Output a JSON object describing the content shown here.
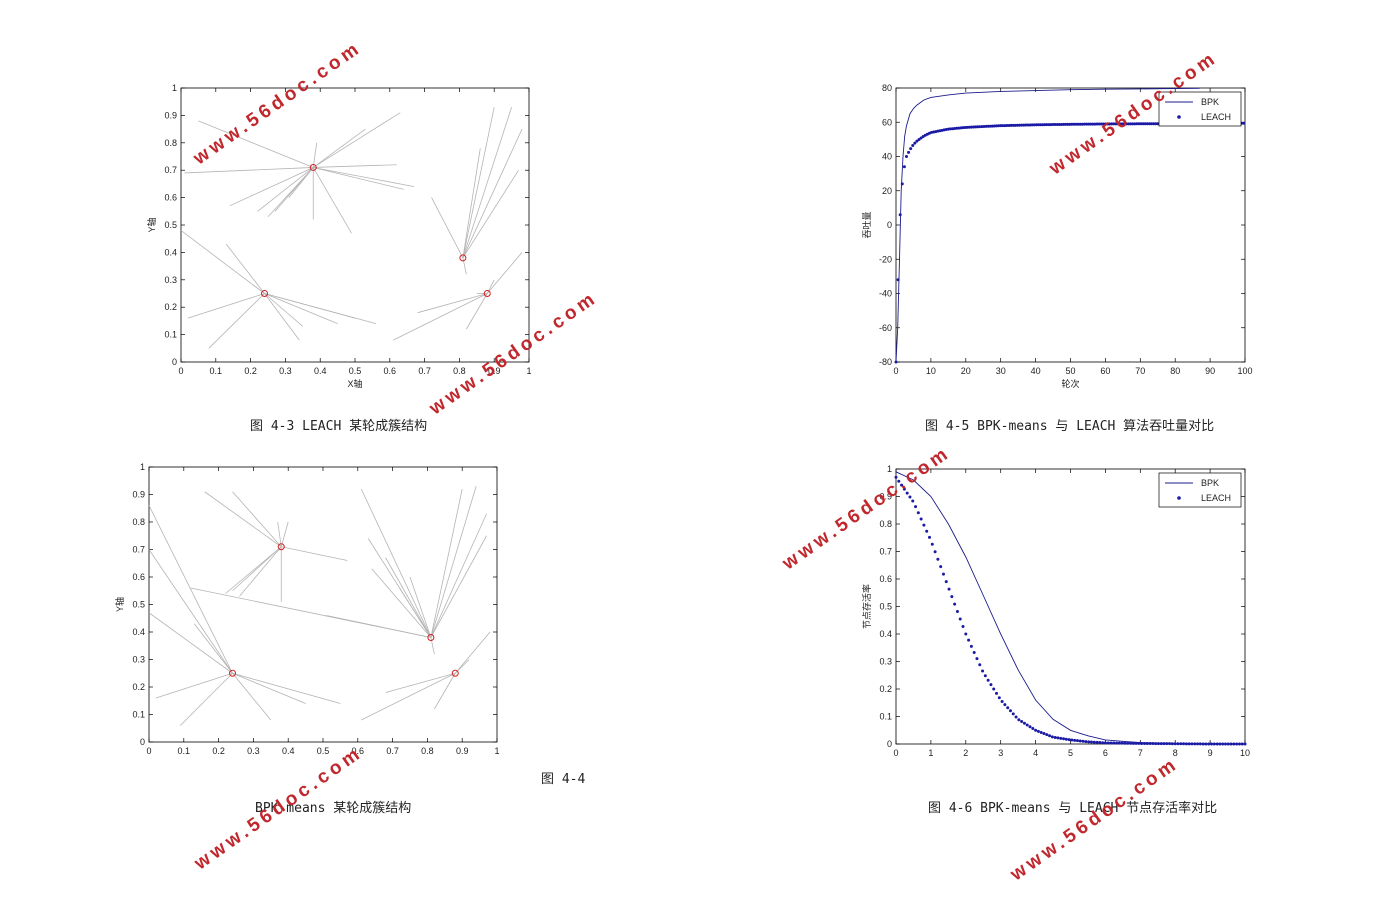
{
  "captions": {
    "fig43": "图 4-3 LEACH 某轮成簇结构",
    "fig44_label": "图 4-4",
    "fig44": "BPK-means 某轮成簇结构",
    "fig45": "图 4-5 BPK-means 与 LEACH 算法吞吐量对比",
    "fig46": "图 4-6 BPK-means 与 LEACH 节点存活率对比"
  },
  "watermark": "www.56doc.com",
  "colors": {
    "link": "#b4b4b4",
    "cluster_head": "#d42020",
    "bpk": "#1c1c8c",
    "leach": "#1a1aa6",
    "watermark": "#c0282d"
  },
  "chart_data": [
    {
      "id": "fig43",
      "type": "scatter",
      "xlabel": "X轴",
      "ylabel": "Y轴",
      "xlim": [
        0,
        1
      ],
      "ylim": [
        0,
        1
      ],
      "xticks": [
        "0",
        "0.1",
        "0.2",
        "0.3",
        "0.4",
        "0.5",
        "0.6",
        "0.7",
        "0.8",
        "0.9",
        "1"
      ],
      "yticks": [
        "0",
        "0.1",
        "0.2",
        "0.3",
        "0.4",
        "0.5",
        "0.6",
        "0.7",
        "0.8",
        "0.9",
        "1"
      ],
      "grid": false,
      "cluster_heads": [
        [
          0.38,
          0.71
        ],
        [
          0.81,
          0.38
        ],
        [
          0.24,
          0.25
        ],
        [
          0.88,
          0.25
        ]
      ],
      "clusters": [
        {
          "head": 0,
          "nodes": [
            [
              0.05,
              0.88
            ],
            [
              0.01,
              0.69
            ],
            [
              0.14,
              0.57
            ],
            [
              0.22,
              0.55
            ],
            [
              0.25,
              0.53
            ],
            [
              0.27,
              0.55
            ],
            [
              0.31,
              0.6
            ],
            [
              0.38,
              0.52
            ],
            [
              0.39,
              0.8
            ],
            [
              0.49,
              0.47
            ],
            [
              0.62,
              0.72
            ],
            [
              0.64,
              0.63
            ],
            [
              0.67,
              0.64
            ],
            [
              0.63,
              0.91
            ],
            [
              0.53,
              0.85
            ]
          ]
        },
        {
          "head": 1,
          "nodes": [
            [
              0.72,
              0.6
            ],
            [
              0.82,
              0.32
            ],
            [
              0.86,
              0.78
            ],
            [
              0.9,
              0.93
            ],
            [
              0.95,
              0.93
            ],
            [
              0.98,
              0.85
            ],
            [
              0.97,
              0.7
            ]
          ]
        },
        {
          "head": 2,
          "nodes": [
            [
              0.0,
              0.48
            ],
            [
              0.13,
              0.43
            ],
            [
              0.02,
              0.16
            ],
            [
              0.08,
              0.05
            ],
            [
              0.34,
              0.08
            ],
            [
              0.35,
              0.13
            ],
            [
              0.45,
              0.14
            ],
            [
              0.5,
              0.16
            ],
            [
              0.56,
              0.14
            ]
          ]
        },
        {
          "head": 3,
          "nodes": [
            [
              0.61,
              0.08
            ],
            [
              0.68,
              0.18
            ],
            [
              0.82,
              0.12
            ],
            [
              0.85,
              0.25
            ],
            [
              0.98,
              0.4
            ],
            [
              0.9,
              0.3
            ]
          ]
        }
      ]
    },
    {
      "id": "fig44",
      "type": "scatter",
      "xlabel": "",
      "ylabel": "Y轴",
      "xlim": [
        0,
        1
      ],
      "ylim": [
        0,
        1
      ],
      "xticks": [
        "0",
        "0.1",
        "0.2",
        "0.3",
        "0.4",
        "0.5",
        "0.6",
        "0.7",
        "0.8",
        "0.9",
        "1"
      ],
      "yticks": [
        "0",
        "0.1",
        "0.2",
        "0.3",
        "0.4",
        "0.5",
        "0.6",
        "0.7",
        "0.8",
        "0.9",
        "1"
      ],
      "grid": false,
      "cluster_heads": [
        [
          0.38,
          0.71
        ],
        [
          0.81,
          0.38
        ],
        [
          0.24,
          0.25
        ],
        [
          0.88,
          0.25
        ]
      ],
      "clusters": [
        {
          "head": 0,
          "nodes": [
            [
              0.16,
              0.91
            ],
            [
              0.24,
              0.91
            ],
            [
              0.37,
              0.8
            ],
            [
              0.4,
              0.8
            ],
            [
              0.57,
              0.66
            ],
            [
              0.38,
              0.51
            ],
            [
              0.24,
              0.55
            ],
            [
              0.26,
              0.53
            ],
            [
              0.22,
              0.54
            ]
          ]
        },
        {
          "head": 1,
          "nodes": [
            [
              0.61,
              0.92
            ],
            [
              0.63,
              0.74
            ],
            [
              0.64,
              0.63
            ],
            [
              0.68,
              0.67
            ],
            [
              0.72,
              0.56
            ],
            [
              0.75,
              0.6
            ],
            [
              0.9,
              0.92
            ],
            [
              0.94,
              0.93
            ],
            [
              0.97,
              0.83
            ],
            [
              0.97,
              0.75
            ],
            [
              0.12,
              0.56
            ],
            [
              0.51,
              0.46
            ],
            [
              0.82,
              0.32
            ]
          ]
        },
        {
          "head": 2,
          "nodes": [
            [
              0.0,
              0.86
            ],
            [
              0.0,
              0.7
            ],
            [
              0.0,
              0.47
            ],
            [
              0.13,
              0.43
            ],
            [
              0.02,
              0.16
            ],
            [
              0.09,
              0.06
            ],
            [
              0.35,
              0.08
            ],
            [
              0.45,
              0.14
            ],
            [
              0.55,
              0.14
            ]
          ]
        },
        {
          "head": 3,
          "nodes": [
            [
              0.61,
              0.08
            ],
            [
              0.68,
              0.18
            ],
            [
              0.82,
              0.12
            ],
            [
              0.98,
              0.4
            ],
            [
              0.92,
              0.3
            ]
          ]
        }
      ]
    },
    {
      "id": "fig45",
      "type": "line",
      "xlabel": "轮次",
      "ylabel": "吞吐量",
      "xlim": [
        0,
        100
      ],
      "ylim": [
        -80,
        80
      ],
      "xticks": [
        "0",
        "10",
        "20",
        "30",
        "40",
        "50",
        "60",
        "70",
        "80",
        "90",
        "100"
      ],
      "yticks": [
        "-80",
        "-60",
        "-40",
        "-20",
        "0",
        "20",
        "40",
        "60",
        "80"
      ],
      "grid": false,
      "legend": "top-right",
      "series": [
        {
          "name": "BPK",
          "style": "line",
          "x_max": 87,
          "x": [
            0,
            0.5,
            1,
            1.5,
            2,
            2.5,
            3,
            4,
            5,
            6,
            8,
            10,
            15,
            20,
            30,
            40,
            50,
            60,
            70,
            80,
            87
          ],
          "values": [
            -80,
            -60,
            -20,
            20,
            40,
            52,
            58,
            65,
            68,
            70,
            73,
            74.5,
            76,
            77,
            78,
            78.5,
            79,
            79.3,
            79.5,
            79.7,
            79.8
          ]
        },
        {
          "name": "LEACH",
          "style": "dots",
          "x_max": 100,
          "x": [
            0,
            1,
            2,
            3,
            4,
            5,
            6,
            8,
            10,
            15,
            20,
            30,
            40,
            50,
            60,
            70,
            80,
            90,
            100
          ],
          "values": [
            -80,
            0,
            30,
            40,
            44,
            47,
            49,
            52,
            54,
            56,
            57,
            58,
            58.5,
            58.8,
            59,
            59.1,
            59.2,
            59.3,
            59.4
          ]
        }
      ]
    },
    {
      "id": "fig46",
      "type": "line",
      "xlabel": "",
      "ylabel": "节点存活率",
      "xlim": [
        0,
        10
      ],
      "ylim": [
        0,
        1
      ],
      "xticks": [
        "0",
        "1",
        "2",
        "3",
        "4",
        "5",
        "6",
        "7",
        "8",
        "9",
        "10"
      ],
      "yticks": [
        "0",
        "0.1",
        "0.2",
        "0.3",
        "0.4",
        "0.5",
        "0.6",
        "0.7",
        "0.8",
        "0.9",
        "1"
      ],
      "grid": false,
      "legend": "top-right",
      "series": [
        {
          "name": "BPK",
          "style": "line",
          "x": [
            0,
            0.5,
            1,
            1.5,
            2,
            2.5,
            3,
            3.5,
            4,
            4.5,
            5,
            5.5,
            6,
            6.5,
            7,
            8,
            9,
            10
          ],
          "values": [
            0.99,
            0.96,
            0.9,
            0.8,
            0.68,
            0.54,
            0.4,
            0.27,
            0.16,
            0.09,
            0.05,
            0.03,
            0.015,
            0.01,
            0.005,
            0.002,
            0.001,
            0.0
          ]
        },
        {
          "name": "LEACH",
          "style": "dots",
          "x": [
            0,
            0.5,
            1,
            1.5,
            2,
            2.5,
            3,
            3.5,
            4,
            4.5,
            5,
            5.5,
            6,
            7,
            8,
            9,
            10
          ],
          "values": [
            0.97,
            0.88,
            0.74,
            0.57,
            0.4,
            0.26,
            0.16,
            0.09,
            0.05,
            0.025,
            0.015,
            0.008,
            0.004,
            0.002,
            0.001,
            0.0,
            0.0
          ]
        }
      ]
    }
  ]
}
